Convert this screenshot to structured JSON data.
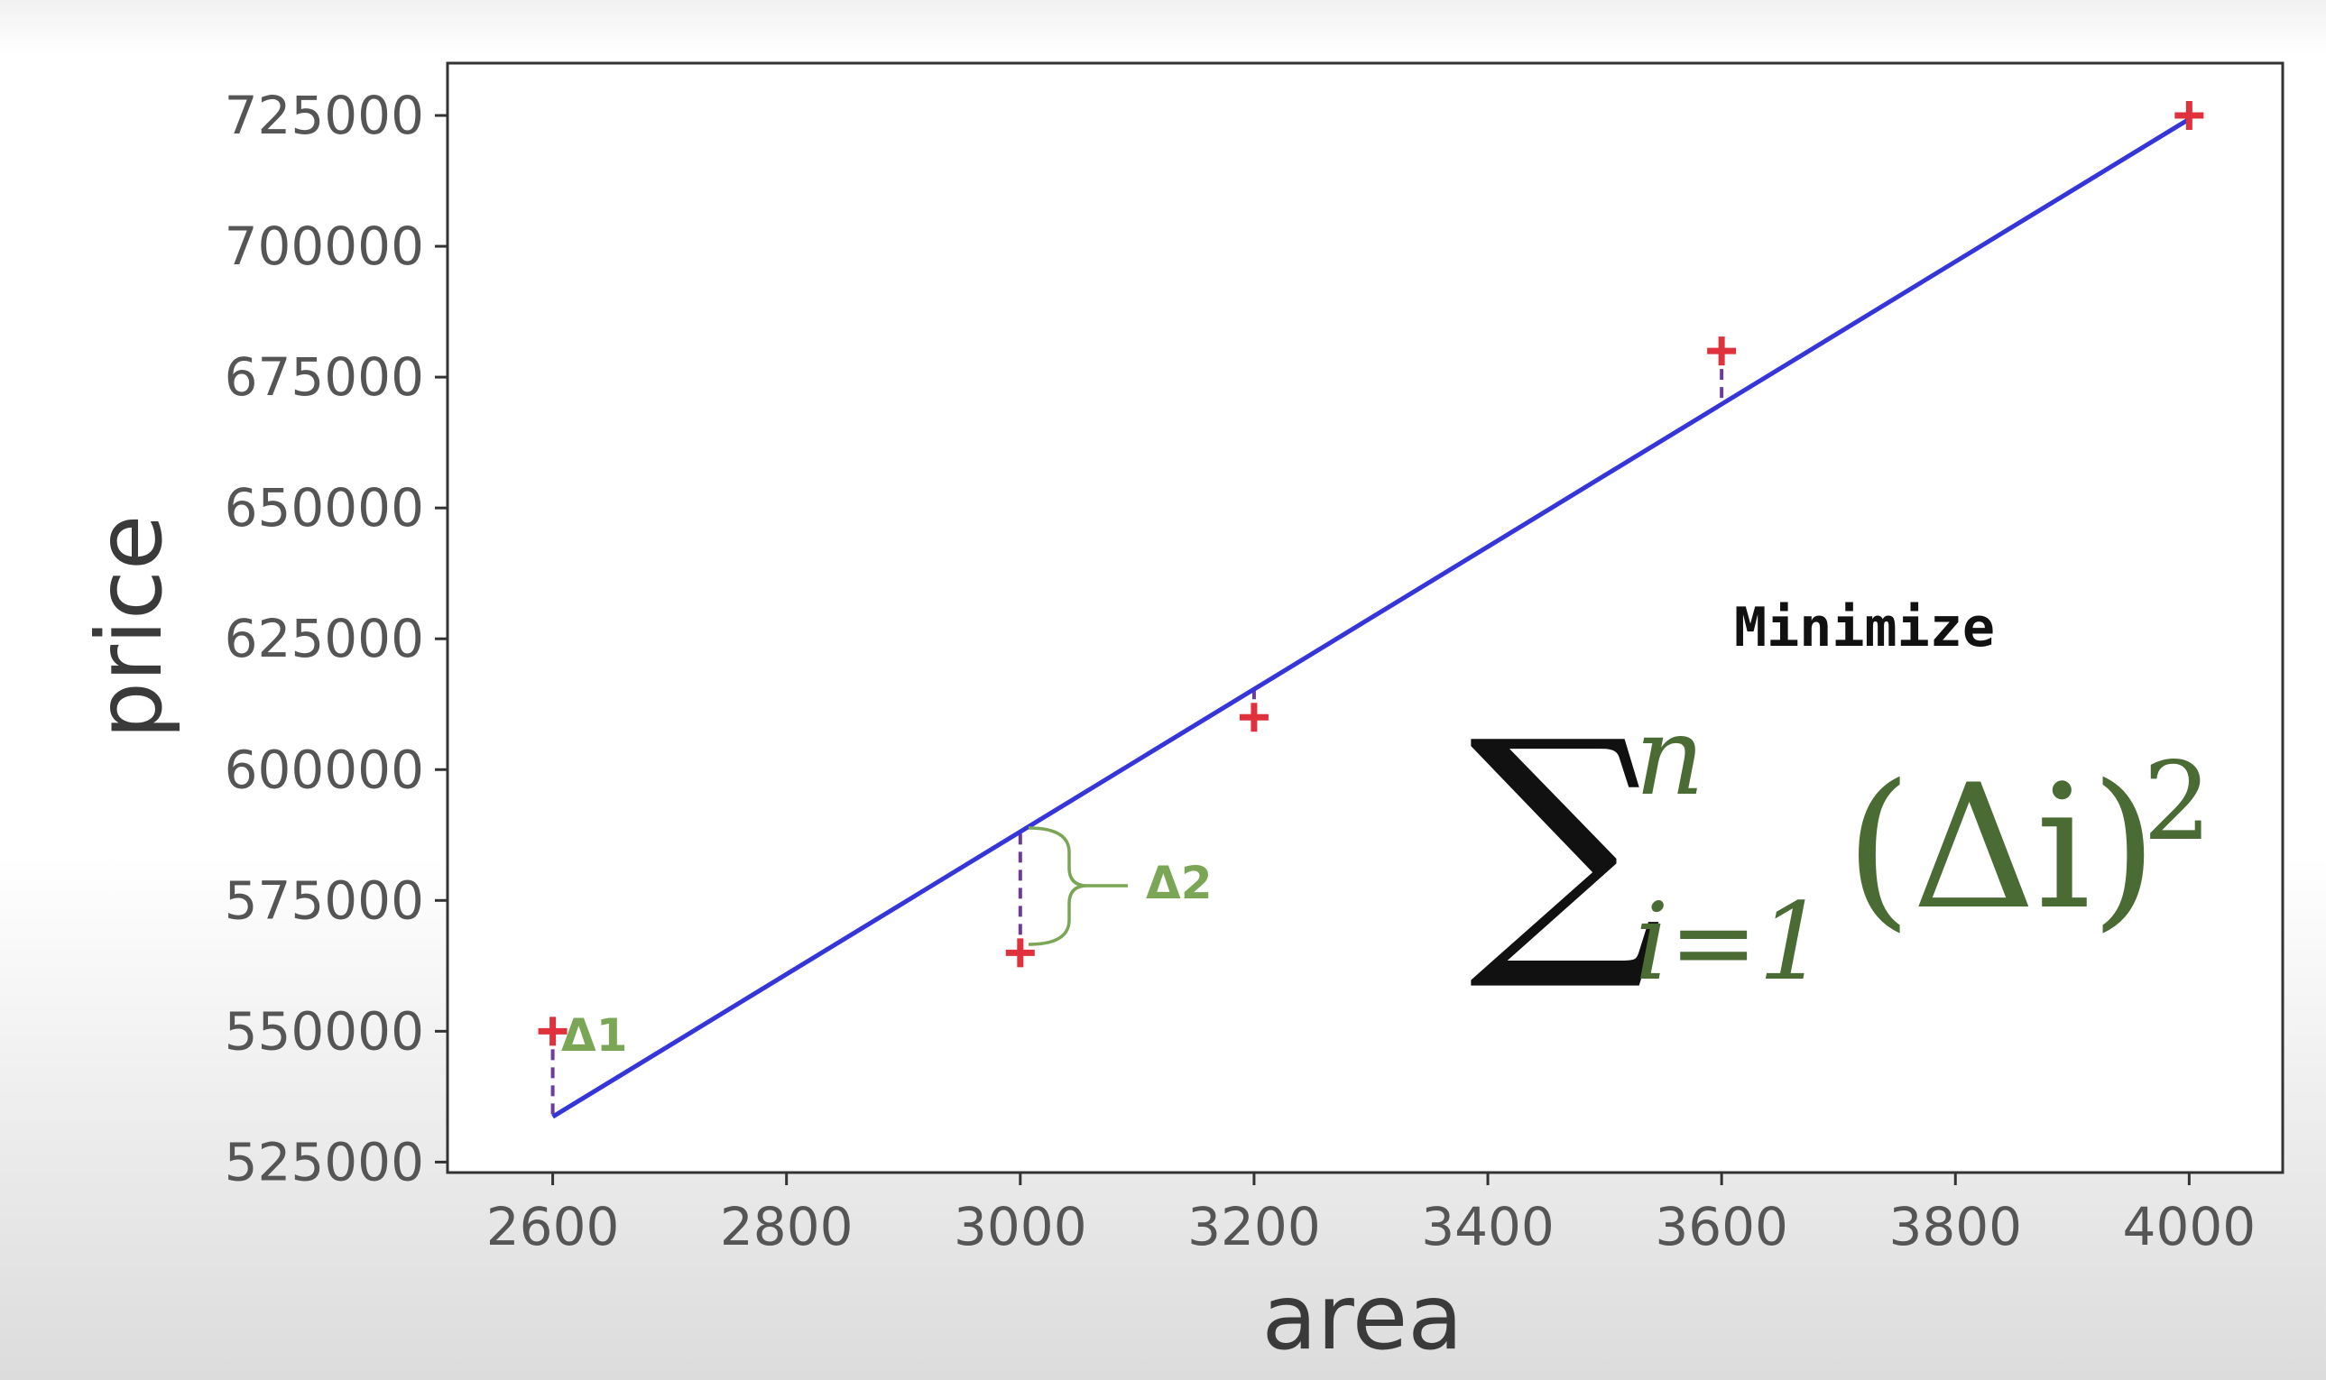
{
  "chart_data": {
    "type": "scatter",
    "title": "",
    "xlabel": "area",
    "ylabel": "price",
    "xlim": [
      2510,
      4080
    ],
    "ylim": [
      523000,
      735000
    ],
    "xticks": [
      "2600",
      "2800",
      "3000",
      "3200",
      "3400",
      "3600",
      "3800",
      "4000"
    ],
    "yticks": [
      "525000",
      "550000",
      "575000",
      "600000",
      "625000",
      "650000",
      "675000",
      "700000",
      "725000"
    ],
    "grid": false,
    "series": [
      {
        "type": "scatter",
        "marker": "+",
        "color": "#e0323c",
        "x": [
          2600,
          3000,
          3200,
          3600,
          4000
        ],
        "y": [
          550000,
          565000,
          610000,
          680000,
          725000
        ]
      },
      {
        "type": "line",
        "color": "#3535d8",
        "x": [
          2600,
          4000
        ],
        "y": [
          533664,
          724300
        ]
      }
    ],
    "residual_color": "#6a3d9a",
    "annotations": {
      "delta1": "Δ1",
      "delta2": "Δ2",
      "minimize": "Minimize",
      "formula": {
        "sigma": "∑",
        "upper": "n",
        "lower": "i=1",
        "body": "(Δi)",
        "exponent": "2"
      }
    }
  }
}
